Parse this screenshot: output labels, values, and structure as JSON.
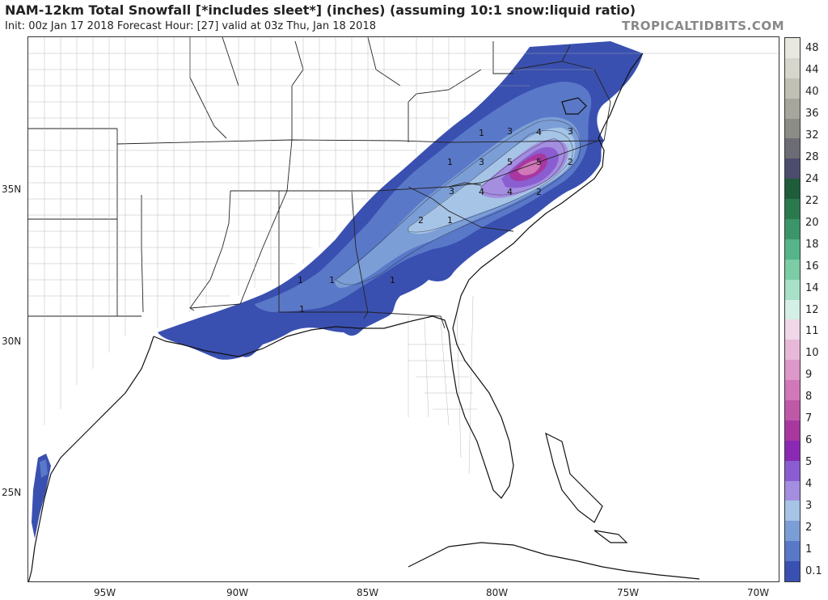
{
  "header": {
    "title": "NAM-12km Total Snowfall [*includes sleet*] (inches) (assuming 10:1 snow:liquid ratio)",
    "subtitle": "Init: 00z Jan 17 2018   Forecast Hour: [27]   valid at 03z Thu, Jan 18 2018",
    "brand": "TROPICALTIDBITS.COM"
  },
  "axes": {
    "latitude_labels": [
      "35N",
      "30N",
      "25N"
    ],
    "longitude_labels": [
      "95W",
      "90W",
      "85W",
      "80W",
      "75W",
      "70W"
    ]
  },
  "colorbar": {
    "labels": [
      "48",
      "44",
      "40",
      "36",
      "32",
      "28",
      "24",
      "22",
      "20",
      "18",
      "16",
      "14",
      "12",
      "11",
      "10",
      "9",
      "8",
      "7",
      "6",
      "5",
      "4",
      "3",
      "2",
      "1",
      "0.1"
    ],
    "colors": [
      "#e8e8e0",
      "#d6d6cc",
      "#c0c0b4",
      "#a6a69c",
      "#8c8c86",
      "#6c6c74",
      "#4c4c6c",
      "#1e5c3a",
      "#2a7a4e",
      "#3a966a",
      "#56b48a",
      "#7ccca6",
      "#a8e0c8",
      "#d4f0e6",
      "#f0d8e8",
      "#e8b8d8",
      "#dc98c8",
      "#d078b8",
      "#c058a8",
      "#a838a0",
      "#8a2ab4",
      "#8a5ed0",
      "#a48ee0",
      "#a6c4e6",
      "#7c9ed6",
      "#5a78c8",
      "#3a50b0"
    ]
  },
  "contour_labels": [
    {
      "text": "1"
    },
    {
      "text": "3"
    },
    {
      "text": "4"
    },
    {
      "text": "3"
    },
    {
      "text": "1"
    },
    {
      "text": "3"
    },
    {
      "text": "5"
    },
    {
      "text": "5"
    },
    {
      "text": "2"
    },
    {
      "text": "3"
    },
    {
      "text": "4"
    },
    {
      "text": "4"
    },
    {
      "text": "2"
    },
    {
      "text": "2"
    },
    {
      "text": "1"
    },
    {
      "text": "1"
    },
    {
      "text": "1"
    },
    {
      "text": "1"
    },
    {
      "text": "1"
    }
  ]
}
